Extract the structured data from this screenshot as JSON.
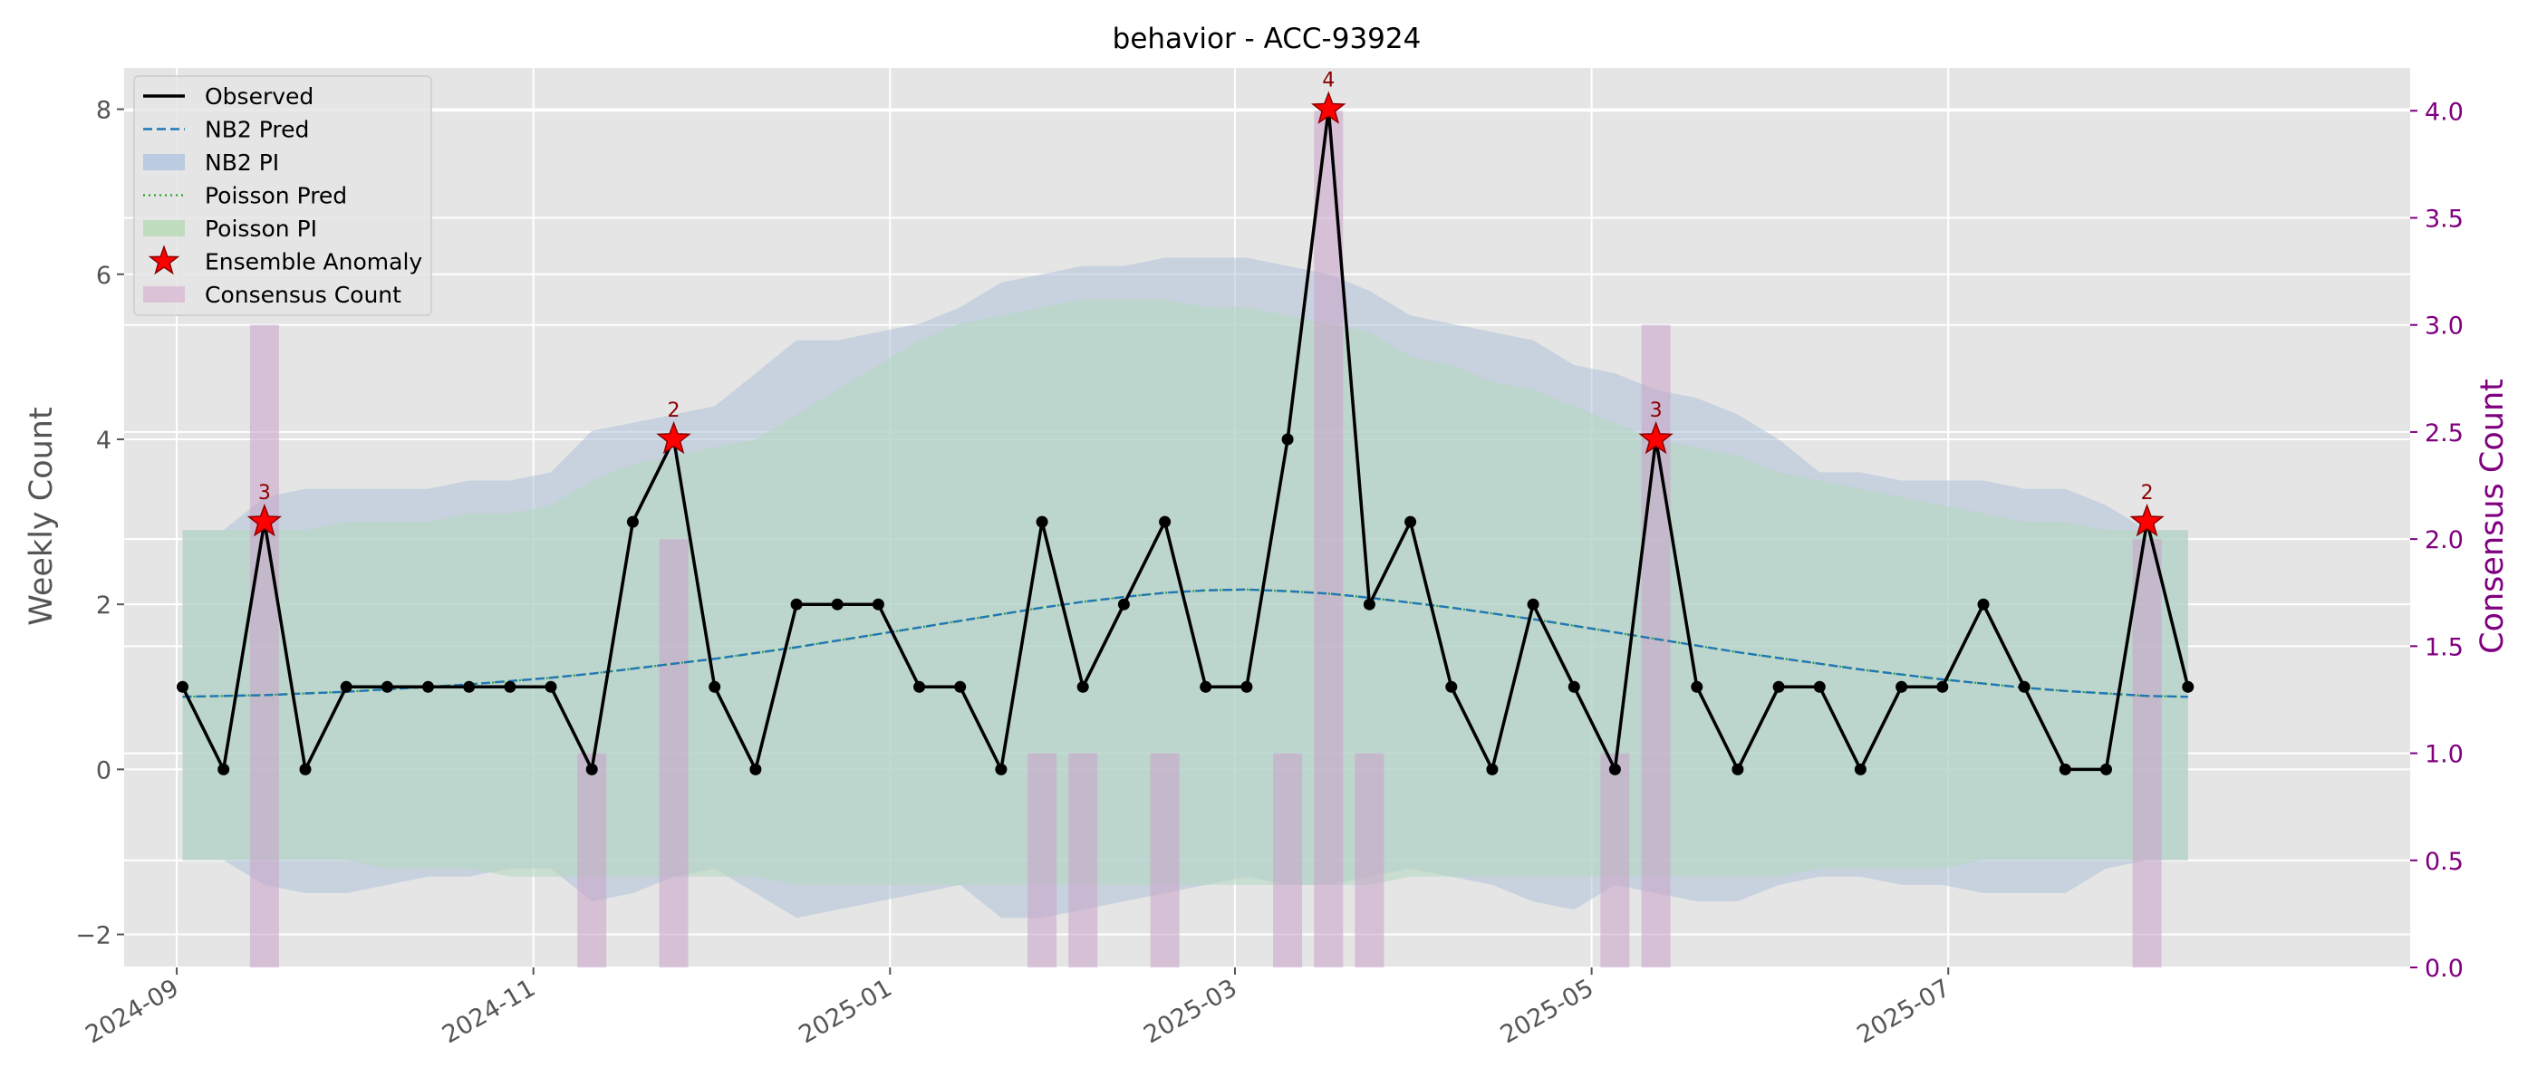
{
  "chart_data": {
    "type": "line",
    "title": "behavior - ACC-93924",
    "ylabel_left": "Weekly Count",
    "ylabel_right": "Consensus Count",
    "ylim_left": [
      -2.4,
      8.5
    ],
    "ylim_right": [
      0.0,
      4.2
    ],
    "xlim": [
      "2024-08-23",
      "2025-09-18"
    ],
    "x_ticks": [
      {
        "date": "2024-09-01",
        "label": "2024-09"
      },
      {
        "date": "2024-11-01",
        "label": "2024-11"
      },
      {
        "date": "2025-01-01",
        "label": "2025-01"
      },
      {
        "date": "2025-03-01",
        "label": "2025-03"
      },
      {
        "date": "2025-05-01",
        "label": "2025-05"
      },
      {
        "date": "2025-07-01",
        "label": "2025-07"
      }
    ],
    "y_ticks_left": [
      -2,
      0,
      2,
      4,
      6,
      8
    ],
    "y_tick_labels_left": [
      "−2",
      "0",
      "2",
      "4",
      "6",
      "8"
    ],
    "y_ticks_right": [
      0.0,
      0.5,
      1.0,
      1.5,
      2.0,
      2.5,
      3.0,
      3.5,
      4.0
    ],
    "y_tick_labels_right": [
      "0.0",
      "0.5",
      "1.0",
      "1.5",
      "2.0",
      "2.5",
      "3.0",
      "3.5",
      "4.0"
    ],
    "start_date": "2024-09-02",
    "week_step_days": 7,
    "observed": [
      1,
      0,
      3,
      0,
      1,
      1,
      1,
      1,
      1,
      1,
      0,
      3,
      4,
      1,
      0,
      2,
      2,
      2,
      1,
      1,
      0,
      3,
      1,
      2,
      3,
      1,
      1,
      4,
      8,
      2,
      3,
      1,
      0,
      2,
      1,
      0,
      4,
      1,
      0,
      1,
      1,
      0,
      1,
      1,
      2,
      1,
      0,
      0,
      3,
      1
    ],
    "nb2_pred": [
      0.88,
      0.89,
      0.9,
      0.92,
      0.94,
      0.97,
      1.0,
      1.03,
      1.07,
      1.11,
      1.16,
      1.22,
      1.28,
      1.34,
      1.41,
      1.48,
      1.56,
      1.64,
      1.72,
      1.8,
      1.88,
      1.96,
      2.03,
      2.09,
      2.14,
      2.17,
      2.18,
      2.16,
      2.13,
      2.08,
      2.02,
      1.96,
      1.89,
      1.82,
      1.74,
      1.66,
      1.58,
      1.5,
      1.42,
      1.35,
      1.28,
      1.21,
      1.15,
      1.09,
      1.04,
      0.99,
      0.95,
      0.92,
      0.89,
      0.88
    ],
    "poisson_pred": [
      0.88,
      0.89,
      0.9,
      0.92,
      0.94,
      0.97,
      1.0,
      1.03,
      1.07,
      1.11,
      1.16,
      1.22,
      1.28,
      1.34,
      1.41,
      1.48,
      1.56,
      1.64,
      1.72,
      1.8,
      1.88,
      1.96,
      2.03,
      2.09,
      2.14,
      2.17,
      2.18,
      2.16,
      2.13,
      2.08,
      2.02,
      1.96,
      1.89,
      1.82,
      1.74,
      1.66,
      1.58,
      1.5,
      1.42,
      1.35,
      1.28,
      1.21,
      1.15,
      1.09,
      1.04,
      0.99,
      0.95,
      0.92,
      0.89,
      0.88
    ],
    "nb2_pi_upper": [
      2.9,
      2.9,
      3.3,
      3.4,
      3.4,
      3.4,
      3.4,
      3.5,
      3.5,
      3.6,
      4.1,
      4.2,
      4.3,
      4.4,
      4.8,
      5.2,
      5.2,
      5.3,
      5.4,
      5.6,
      5.9,
      6.0,
      6.1,
      6.1,
      6.2,
      6.2,
      6.2,
      6.1,
      6.0,
      5.8,
      5.5,
      5.4,
      5.3,
      5.2,
      4.9,
      4.8,
      4.6,
      4.5,
      4.3,
      4.0,
      3.6,
      3.6,
      3.5,
      3.5,
      3.5,
      3.4,
      3.4,
      3.2,
      2.9,
      2.9
    ],
    "nb2_pi_lower": [
      -1.1,
      -1.1,
      -1.4,
      -1.5,
      -1.5,
      -1.4,
      -1.3,
      -1.3,
      -1.2,
      -1.2,
      -1.6,
      -1.5,
      -1.3,
      -1.2,
      -1.5,
      -1.8,
      -1.7,
      -1.6,
      -1.5,
      -1.4,
      -1.8,
      -1.8,
      -1.7,
      -1.6,
      -1.5,
      -1.4,
      -1.3,
      -1.4,
      -1.4,
      -1.3,
      -1.2,
      -1.3,
      -1.4,
      -1.6,
      -1.7,
      -1.4,
      -1.5,
      -1.6,
      -1.6,
      -1.4,
      -1.3,
      -1.3,
      -1.4,
      -1.4,
      -1.5,
      -1.5,
      -1.5,
      -1.2,
      -1.1,
      -1.1
    ],
    "poisson_pi_upper": [
      2.9,
      2.9,
      2.9,
      2.9,
      3.0,
      3.0,
      3.0,
      3.1,
      3.1,
      3.2,
      3.5,
      3.7,
      3.8,
      3.9,
      4.0,
      4.3,
      4.6,
      4.9,
      5.2,
      5.4,
      5.5,
      5.6,
      5.7,
      5.7,
      5.7,
      5.6,
      5.6,
      5.5,
      5.4,
      5.3,
      5.0,
      4.9,
      4.7,
      4.6,
      4.4,
      4.2,
      4.0,
      3.9,
      3.8,
      3.6,
      3.5,
      3.4,
      3.3,
      3.2,
      3.1,
      3.0,
      3.0,
      2.9,
      2.9,
      2.9
    ],
    "poisson_pi_lower": [
      -1.1,
      -1.1,
      -1.1,
      -1.1,
      -1.1,
      -1.2,
      -1.2,
      -1.2,
      -1.3,
      -1.3,
      -1.3,
      -1.3,
      -1.3,
      -1.3,
      -1.3,
      -1.4,
      -1.4,
      -1.4,
      -1.4,
      -1.4,
      -1.4,
      -1.4,
      -1.4,
      -1.4,
      -1.4,
      -1.4,
      -1.4,
      -1.4,
      -1.4,
      -1.4,
      -1.3,
      -1.3,
      -1.3,
      -1.3,
      -1.3,
      -1.3,
      -1.3,
      -1.3,
      -1.3,
      -1.3,
      -1.2,
      -1.2,
      -1.2,
      -1.2,
      -1.1,
      -1.1,
      -1.1,
      -1.1,
      -1.1,
      -1.1
    ],
    "consensus_bars": [
      {
        "week": 2,
        "count": 3
      },
      {
        "week": 10,
        "count": 1
      },
      {
        "week": 12,
        "count": 2
      },
      {
        "week": 21,
        "count": 1
      },
      {
        "week": 22,
        "count": 1
      },
      {
        "week": 24,
        "count": 1
      },
      {
        "week": 27,
        "count": 1
      },
      {
        "week": 28,
        "count": 4
      },
      {
        "week": 29,
        "count": 1
      },
      {
        "week": 35,
        "count": 1
      },
      {
        "week": 36,
        "count": 3
      },
      {
        "week": 48,
        "count": 2
      }
    ],
    "anomalies": [
      {
        "week": 2,
        "value": 3,
        "label": "3"
      },
      {
        "week": 12,
        "value": 4,
        "label": "2"
      },
      {
        "week": 28,
        "value": 8,
        "label": "4"
      },
      {
        "week": 36,
        "value": 4,
        "label": "3"
      },
      {
        "week": 48,
        "value": 3,
        "label": "2"
      }
    ],
    "legend_position": "upper-left",
    "legend": [
      {
        "label": "Observed",
        "kind": "line",
        "color": "#000000"
      },
      {
        "label": "NB2 Pred",
        "kind": "dashed",
        "color": "#1f77b4"
      },
      {
        "label": "NB2 PI",
        "kind": "patch",
        "color": "#b0c4de"
      },
      {
        "label": "Poisson Pred",
        "kind": "dotted",
        "color": "#2ca02c"
      },
      {
        "label": "Poisson PI",
        "kind": "patch",
        "color": "#b5d9b5"
      },
      {
        "label": "Ensemble Anomaly",
        "kind": "star",
        "color": "#ff0000"
      },
      {
        "label": "Consensus Count",
        "kind": "patch",
        "color": "#d8b9d3"
      }
    ],
    "colors": {
      "axes_bg": "#e5e5e5",
      "grid": "#ffffff",
      "observed": "#000000",
      "nb2": "#1f77b4",
      "nb2_pi": "#aec3d8",
      "poisson": "#2ca02c",
      "poisson_pi": "#b3d7c0",
      "consensus": "#c9a6c9",
      "anomaly": "#ff0000",
      "anomaly_label": "#8b0000",
      "right_axis": "#800080",
      "text": "#555555"
    }
  }
}
